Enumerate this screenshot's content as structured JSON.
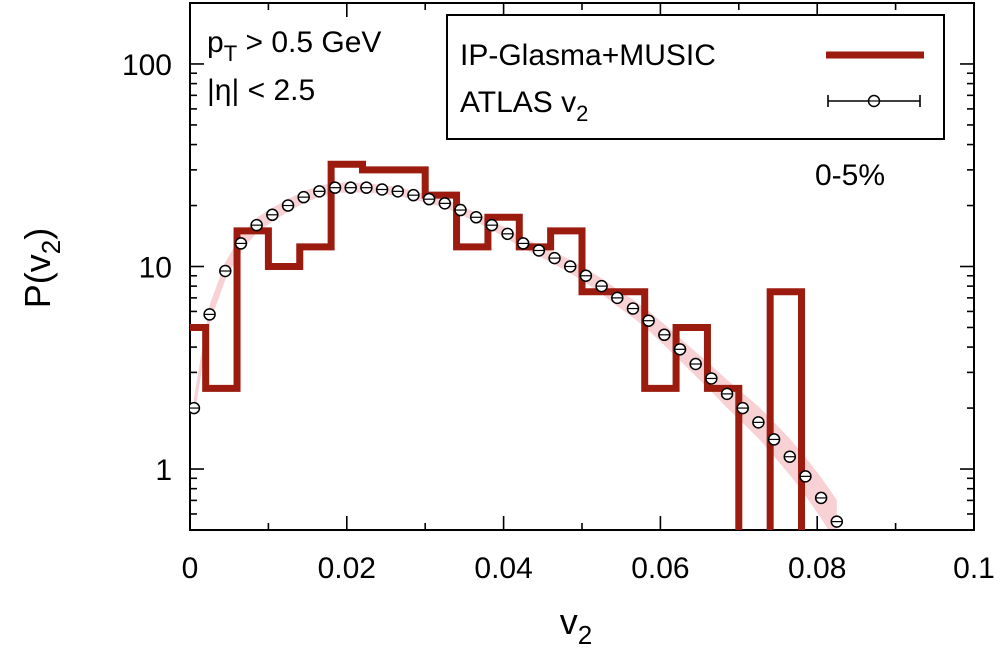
{
  "chart_data": {
    "type": "line",
    "xlabel": {
      "main": "v",
      "sub": "2"
    },
    "ylabel": {
      "main": "P(v",
      "sub": "2",
      "close": ")"
    },
    "xlim": [
      0,
      0.1
    ],
    "ylim": [
      0.5,
      200
    ],
    "log_y": true,
    "x_ticks": [
      {
        "value": 0,
        "label": "0"
      },
      {
        "value": 0.02,
        "label": "0.02"
      },
      {
        "value": 0.04,
        "label": "0.04"
      },
      {
        "value": 0.06,
        "label": "0.06"
      },
      {
        "value": 0.08,
        "label": "0.08"
      },
      {
        "value": 0.1,
        "label": "0.1"
      }
    ],
    "y_ticks": [
      {
        "value": 1,
        "label": "1"
      },
      {
        "value": 10,
        "label": "10"
      },
      {
        "value": 100,
        "label": "100"
      }
    ],
    "annotations": {
      "cut1": {
        "pre": "p",
        "sub": "T",
        "post": " > 0.5 GeV"
      },
      "cut2": "|η| < 2.5",
      "centrality": "0-5%"
    },
    "legend": {
      "position": "top-right",
      "entries": [
        {
          "name": "IP-Glasma+MUSIC",
          "style": "thick-line"
        },
        {
          "name": "ATLAS v",
          "sub": "2",
          "style": "points-errorbar"
        }
      ]
    },
    "colors": {
      "histogram": "#9b1b0e",
      "band": "#f7c9cd",
      "points": "#000000"
    },
    "series": [
      {
        "name": "IP-Glasma+MUSIC",
        "kind": "step-histogram",
        "edges": [
          0,
          0.002,
          0.006,
          0.01,
          0.014,
          0.018,
          0.022,
          0.026,
          0.03,
          0.034,
          0.038,
          0.042,
          0.046,
          0.05,
          0.054,
          0.058,
          0.062,
          0.066,
          0.07,
          0.074,
          0.078
        ],
        "values": [
          5,
          2.5,
          15,
          10,
          12.5,
          32,
          30,
          30,
          22.5,
          12.5,
          17.5,
          12.5,
          15,
          7.5,
          7.5,
          2.5,
          5,
          2.5,
          0,
          7.5
        ]
      },
      {
        "name": "ATLAS v2",
        "kind": "points",
        "x": [
          0.0005,
          0.0025,
          0.0045,
          0.0065,
          0.0085,
          0.0105,
          0.0125,
          0.0145,
          0.0165,
          0.0185,
          0.0205,
          0.0225,
          0.0245,
          0.0265,
          0.0285,
          0.0305,
          0.0325,
          0.0345,
          0.0365,
          0.0385,
          0.0405,
          0.0425,
          0.0445,
          0.0465,
          0.0485,
          0.0505,
          0.0525,
          0.0545,
          0.0565,
          0.0585,
          0.0605,
          0.0625,
          0.0645,
          0.0665,
          0.0685,
          0.0705,
          0.0725,
          0.0745,
          0.0765,
          0.0785,
          0.0805,
          0.0825
        ],
        "y": [
          2.0,
          5.8,
          9.5,
          13.0,
          16.0,
          18.0,
          20.0,
          22.0,
          23.5,
          24.5,
          24.5,
          24.5,
          24.0,
          23.5,
          22.5,
          21.5,
          20.5,
          19.0,
          17.5,
          16.0,
          14.5,
          13.0,
          12.0,
          11.0,
          10.0,
          9.0,
          8.0,
          7.0,
          6.2,
          5.4,
          4.6,
          3.9,
          3.3,
          2.8,
          2.35,
          2.0,
          1.7,
          1.4,
          1.15,
          0.92,
          0.72,
          0.55
        ]
      }
    ]
  }
}
